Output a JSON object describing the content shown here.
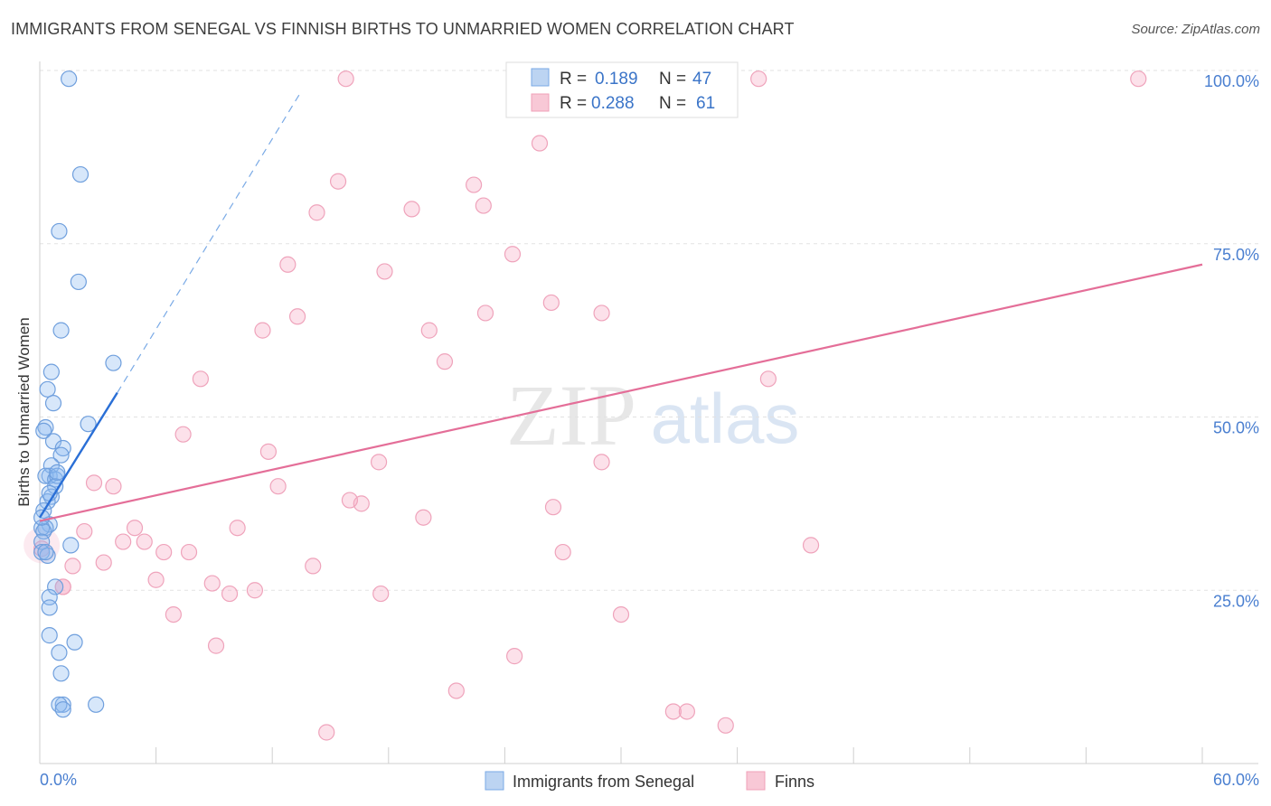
{
  "title": "IMMIGRANTS FROM SENEGAL VS FINNISH BIRTHS TO UNMARRIED WOMEN CORRELATION CHART",
  "source": "Source: ZipAtlas.com",
  "watermark": {
    "zip": "ZIP",
    "atlas": "atlas"
  },
  "colors": {
    "senegal": "#7aaae6",
    "senegal_line": "#2a6fd6",
    "finns": "#f0a0b8",
    "finns_line": "#e46e98",
    "accent_text": "#3a74c8"
  },
  "chart_data": {
    "type": "scatter",
    "xlabel": "",
    "ylabel": "Births to Unmarried Women",
    "xlim": [
      0,
      60
    ],
    "ylim": [
      0,
      100
    ],
    "x_tick_labels": [
      "0.0%",
      "60.0%"
    ],
    "y_ticks": [
      {
        "value": 25,
        "label": "25.0%"
      },
      {
        "value": 50,
        "label": "50.0%"
      },
      {
        "value": 75,
        "label": "75.0%"
      },
      {
        "value": 100,
        "label": "100.0%"
      }
    ],
    "legend": {
      "rows": [
        {
          "r_label": "R =",
          "r": "0.189",
          "n_label": "N =",
          "n": "47"
        },
        {
          "r_label": "R =",
          "r": "0.288",
          "n_label": "N =",
          "n": "61"
        }
      ]
    },
    "bottom_legend": [
      "Immigrants from Senegal",
      "Finns"
    ],
    "series": [
      {
        "name": "Immigrants from Senegal",
        "trend": {
          "x0": 0.0,
          "y0": 35.5,
          "x1": 4.0,
          "y1": 53.5,
          "dash_x1": 13.5,
          "dash_y1": 97.0
        },
        "points": [
          [
            1.5,
            98.8
          ],
          [
            2.1,
            85.0
          ],
          [
            1.0,
            76.8
          ],
          [
            2.0,
            69.5
          ],
          [
            1.1,
            62.5
          ],
          [
            3.8,
            57.8
          ],
          [
            0.6,
            56.5
          ],
          [
            0.4,
            54.0
          ],
          [
            0.7,
            52.0
          ],
          [
            0.3,
            48.5
          ],
          [
            0.2,
            48.0
          ],
          [
            2.5,
            49.0
          ],
          [
            0.7,
            46.5
          ],
          [
            1.2,
            45.5
          ],
          [
            1.1,
            44.5
          ],
          [
            0.6,
            43.0
          ],
          [
            0.5,
            41.5
          ],
          [
            0.3,
            41.5
          ],
          [
            0.8,
            41.0
          ],
          [
            0.9,
            41.5
          ],
          [
            0.8,
            40.0
          ],
          [
            0.6,
            38.5
          ],
          [
            0.4,
            37.8
          ],
          [
            0.2,
            36.5
          ],
          [
            0.5,
            34.5
          ],
          [
            0.3,
            34.0
          ],
          [
            0.1,
            34.0
          ],
          [
            0.2,
            33.5
          ],
          [
            0.1,
            32.0
          ],
          [
            1.6,
            31.5
          ],
          [
            0.1,
            30.5
          ],
          [
            0.4,
            30.0
          ],
          [
            0.8,
            25.5
          ],
          [
            0.5,
            24.0
          ],
          [
            0.5,
            22.5
          ],
          [
            0.5,
            18.5
          ],
          [
            1.8,
            17.5
          ],
          [
            1.0,
            16.0
          ],
          [
            1.1,
            13.0
          ],
          [
            1.2,
            8.5
          ],
          [
            1.0,
            8.5
          ],
          [
            1.2,
            7.8
          ],
          [
            2.9,
            8.5
          ],
          [
            0.3,
            30.5
          ],
          [
            0.1,
            35.5
          ],
          [
            0.5,
            39.0
          ],
          [
            0.9,
            42.0
          ]
        ]
      },
      {
        "name": "Finns",
        "trend": {
          "x0": 0.0,
          "y0": 35.0,
          "x1": 60.0,
          "y1": 72.0
        },
        "points": [
          [
            15.8,
            98.8
          ],
          [
            37.1,
            98.8
          ],
          [
            56.7,
            98.8
          ],
          [
            25.8,
            89.5
          ],
          [
            15.4,
            84.0
          ],
          [
            22.4,
            83.5
          ],
          [
            14.3,
            79.5
          ],
          [
            19.2,
            80.0
          ],
          [
            22.9,
            80.5
          ],
          [
            24.4,
            73.5
          ],
          [
            12.8,
            72.0
          ],
          [
            17.8,
            71.0
          ],
          [
            26.4,
            66.5
          ],
          [
            13.3,
            64.5
          ],
          [
            23.0,
            65.0
          ],
          [
            29.0,
            65.0
          ],
          [
            11.5,
            62.5
          ],
          [
            20.1,
            62.5
          ],
          [
            20.9,
            58.0
          ],
          [
            8.3,
            55.5
          ],
          [
            37.6,
            55.5
          ],
          [
            7.4,
            47.5
          ],
          [
            11.8,
            45.0
          ],
          [
            17.5,
            43.5
          ],
          [
            29.0,
            43.5
          ],
          [
            2.8,
            40.5
          ],
          [
            3.8,
            40.0
          ],
          [
            12.3,
            40.0
          ],
          [
            16.6,
            37.5
          ],
          [
            16.0,
            38.0
          ],
          [
            26.5,
            37.0
          ],
          [
            19.8,
            35.5
          ],
          [
            2.3,
            33.5
          ],
          [
            4.9,
            34.0
          ],
          [
            10.2,
            34.0
          ],
          [
            4.3,
            32.0
          ],
          [
            5.4,
            32.0
          ],
          [
            6.4,
            30.5
          ],
          [
            7.7,
            30.5
          ],
          [
            39.8,
            31.5
          ],
          [
            27.0,
            30.5
          ],
          [
            3.3,
            29.0
          ],
          [
            1.7,
            28.5
          ],
          [
            14.1,
            28.5
          ],
          [
            6.0,
            26.5
          ],
          [
            8.9,
            26.0
          ],
          [
            1.2,
            25.5
          ],
          [
            1.2,
            25.5
          ],
          [
            9.8,
            24.5
          ],
          [
            11.1,
            25.0
          ],
          [
            17.6,
            24.5
          ],
          [
            6.9,
            21.5
          ],
          [
            30.0,
            21.5
          ],
          [
            9.1,
            17.0
          ],
          [
            24.5,
            15.5
          ],
          [
            21.5,
            10.5
          ],
          [
            32.7,
            7.5
          ],
          [
            33.4,
            7.5
          ],
          [
            35.4,
            5.5
          ],
          [
            14.8,
            4.5
          ],
          [
            0.1,
            31.0
          ]
        ]
      }
    ]
  }
}
